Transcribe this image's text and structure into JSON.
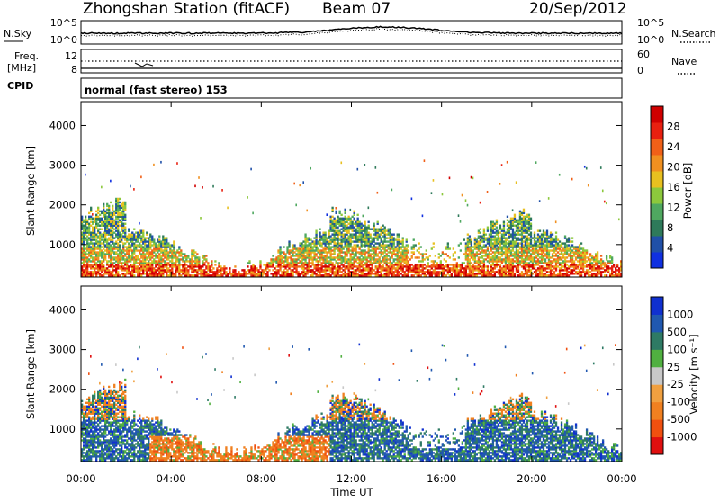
{
  "header": {
    "station": "Zhongshan Station (fitACF)",
    "beam": "Beam 07",
    "date": "20/Sep/2012"
  },
  "top_strip": {
    "left_label": "N.Sky",
    "right_label": "N.Search",
    "y_ticks_left": [
      "10^5",
      "10^0"
    ],
    "y_ticks_right": [
      "10^5",
      "10^0"
    ]
  },
  "freq_strip": {
    "left_label_1": "Freq.",
    "left_label_2": "[MHz]",
    "right_label": "Nave",
    "y_ticks_left": [
      "12",
      "8"
    ],
    "y_ticks_right": [
      "60",
      "0"
    ]
  },
  "cpid": {
    "label": "CPID",
    "mode": "normal (fast stereo) 153"
  },
  "x_axis": {
    "label": "Time UT",
    "ticks": [
      "00:00",
      "04:00",
      "08:00",
      "12:00",
      "16:00",
      "20:00",
      "00:00"
    ]
  },
  "chart_data": [
    {
      "type": "heatmap",
      "panel": "power",
      "ylabel": "Slant Range [km]",
      "y_ticks": [
        1000,
        2000,
        3000,
        4000
      ],
      "ylim": [
        180,
        4600
      ],
      "xlim_hours": [
        0,
        24
      ],
      "colorbar": {
        "label": "Power [dB]",
        "ticks": [
          "4",
          "8",
          "12",
          "16",
          "20",
          "24",
          "28"
        ],
        "colors": [
          "#1030e0",
          "#2050a8",
          "#2e7a5a",
          "#4fa860",
          "#8cc83c",
          "#e8c020",
          "#f09020",
          "#f06018",
          "#e82010",
          "#d00000"
        ]
      }
    },
    {
      "type": "heatmap",
      "panel": "velocity",
      "ylabel": "Slant Range [km]",
      "y_ticks": [
        1000,
        2000,
        3000,
        4000
      ],
      "ylim": [
        180,
        4600
      ],
      "xlim_hours": [
        0,
        24
      ],
      "colorbar": {
        "label": "Velocity [m s⁻¹]",
        "ticks": [
          "1000",
          "500",
          "100",
          "25",
          "-25",
          "-100",
          "-500",
          "-1000"
        ],
        "colors": [
          "#1030d0",
          "#2058b0",
          "#2e7a64",
          "#50b040",
          "#c8c8c8",
          "#f0a040",
          "#f08020",
          "#f05010",
          "#e01010"
        ]
      }
    }
  ]
}
